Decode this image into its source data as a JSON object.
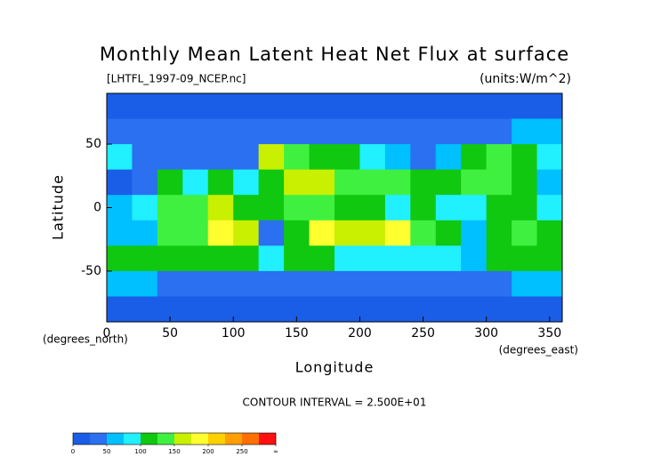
{
  "chart_data": {
    "type": "contour",
    "title": "Monthly Mean Latent Heat Net Flux at surface",
    "subtitle": "[LHTFL_1997-09_NCEP.nc]",
    "units": "(units:W/m^2)",
    "x_label": "Longitude",
    "y_label": "Latitude",
    "x_unit": "(degrees_east)",
    "y_unit": "(degrees_north)",
    "note": "CONTOUR INTERVAL = 2.500E+01",
    "xlim": [
      0,
      360
    ],
    "ylim": [
      -90,
      90
    ],
    "xticks": [
      0,
      50,
      100,
      150,
      200,
      250,
      300,
      350
    ],
    "yticks": [
      -50,
      0,
      50
    ],
    "x": [
      10,
      30,
      50,
      70,
      90,
      110,
      130,
      150,
      170,
      190,
      210,
      230,
      250,
      270,
      290,
      310,
      330,
      350
    ],
    "y": [
      80,
      60,
      40,
      20,
      0,
      -20,
      -40,
      -60,
      -80
    ],
    "values": [
      [
        10,
        10,
        10,
        10,
        10,
        10,
        10,
        10,
        10,
        10,
        10,
        10,
        10,
        10,
        10,
        10,
        10,
        10
      ],
      [
        40,
        40,
        40,
        40,
        30,
        30,
        30,
        30,
        40,
        45,
        45,
        40,
        40,
        35,
        35,
        45,
        70,
        60
      ],
      [
        90,
        40,
        40,
        30,
        30,
        30,
        150,
        140,
        120,
        100,
        90,
        60,
        40,
        50,
        110,
        130,
        100,
        90
      ],
      [
        20,
        30,
        100,
        80,
        100,
        90,
        120,
        170,
        160,
        130,
        140,
        130,
        100,
        110,
        130,
        130,
        120,
        60
      ],
      [
        60,
        80,
        130,
        130,
        150,
        100,
        100,
        130,
        130,
        110,
        100,
        90,
        100,
        80,
        80,
        110,
        100,
        90
      ],
      [
        50,
        70,
        140,
        140,
        190,
        150,
        30,
        110,
        190,
        150,
        160,
        180,
        130,
        100,
        60,
        110,
        130,
        100
      ],
      [
        110,
        120,
        110,
        100,
        110,
        100,
        80,
        110,
        100,
        90,
        90,
        90,
        90,
        80,
        50,
        100,
        110,
        110
      ],
      [
        50,
        50,
        45,
        45,
        45,
        45,
        45,
        45,
        45,
        45,
        45,
        45,
        45,
        45,
        40,
        45,
        50,
        50
      ],
      [
        10,
        10,
        10,
        10,
        10,
        10,
        10,
        10,
        10,
        10,
        10,
        10,
        10,
        10,
        10,
        10,
        10,
        10
      ]
    ],
    "level_step": 25,
    "colors": [
      "#1a5ee8",
      "#2a70f0",
      "#00c0ff",
      "#20f0ff",
      "#10c810",
      "#40f040",
      "#c8f000",
      "#ffff30",
      "#ffd000",
      "#ffa000",
      "#ff7000",
      "#ff1010"
    ],
    "colorbar_ticks": [
      0,
      50,
      100,
      150,
      200,
      250,
      {
        "value": 300,
        "label": "∞"
      }
    ]
  }
}
